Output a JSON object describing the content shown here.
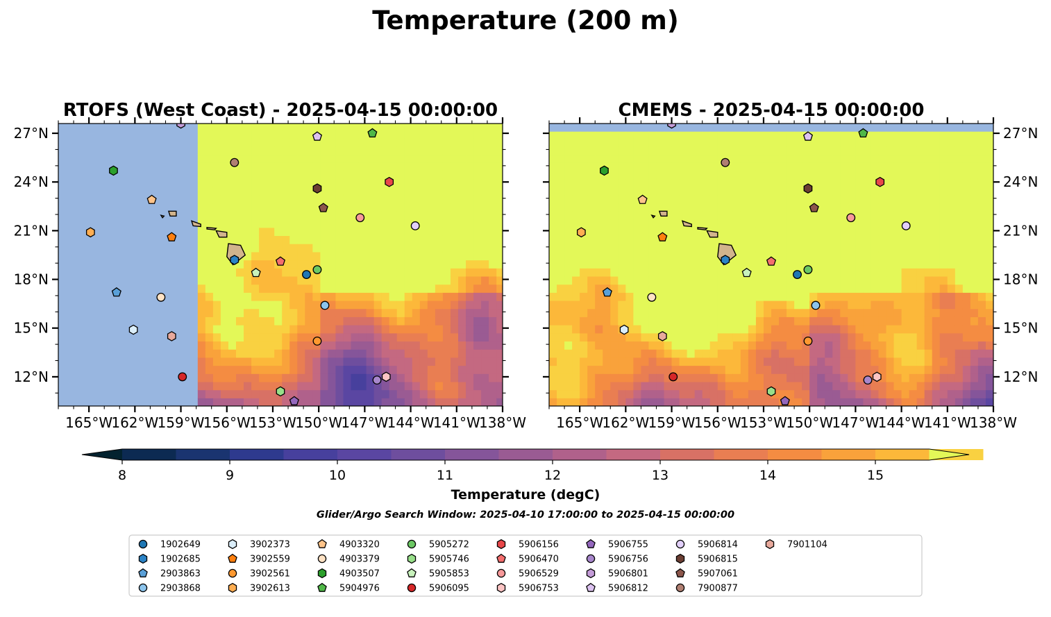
{
  "title": "Temperature (200 m)",
  "search_window": "Glider/Argo Search Window: 2025-04-10 17:00:00 to 2025-04-15 00:00:00",
  "colorbar": {
    "label": "Temperature (degC)",
    "min": 7.5,
    "max": 15.5,
    "ticks": [
      8,
      9,
      10,
      11,
      12,
      13,
      14,
      15
    ],
    "colors": [
      "#03222f",
      "#0c2a52",
      "#1a3470",
      "#2e3a8e",
      "#47409d",
      "#5a46a2",
      "#6e4e9e",
      "#85559a",
      "#9a5b93",
      "#b0618b",
      "#c46981",
      "#d87165",
      "#e97e52",
      "#f48c42",
      "#f9a23b",
      "#fcb83a",
      "#f9d141",
      "#e3f858"
    ],
    "ocean_color": "#98b6e0",
    "land_color": "#d2b48c"
  },
  "chart_data": [
    {
      "type": "heatmap",
      "title": "RTOFS (West Coast) - 2025-04-15 00:00:00",
      "xlim": [
        -167,
        -138
      ],
      "ylim": [
        10.2,
        27.6
      ],
      "xticks": [
        -165,
        -162,
        -159,
        -156,
        -153,
        -150,
        -147,
        -144,
        -141,
        -138
      ],
      "xtick_labels": [
        "165°W",
        "162°W",
        "159°W",
        "156°W",
        "153°W",
        "150°W",
        "147°W",
        "144°W",
        "141°W",
        "138°W"
      ],
      "yticks": [
        12,
        15,
        18,
        21,
        24,
        27
      ],
      "ytick_labels": [
        "12°N",
        "15°N",
        "18°N",
        "21°N",
        "24°N",
        "27°N"
      ],
      "ytick_side": "left",
      "data_extent": {
        "lon": [
          -157.9,
          -138
        ],
        "lat": [
          10.2,
          27.6
        ]
      }
    },
    {
      "type": "heatmap",
      "title": "CMEMS - 2025-04-15 00:00:00",
      "xlim": [
        -167,
        -138
      ],
      "ylim": [
        10.2,
        27.6
      ],
      "xticks": [
        -165,
        -162,
        -159,
        -156,
        -153,
        -150,
        -147,
        -144,
        -141,
        -138
      ],
      "xtick_labels": [
        "165°W",
        "162°W",
        "159°W",
        "156°W",
        "153°W",
        "150°W",
        "147°W",
        "144°W",
        "141°W",
        "138°W"
      ],
      "yticks": [
        12,
        15,
        18,
        21,
        24,
        27
      ],
      "ytick_labels": [
        "12°N",
        "15°N",
        "18°N",
        "21°N",
        "24°N",
        "27°N"
      ],
      "ytick_side": "right",
      "data_extent": {
        "lon": [
          -167,
          -138
        ],
        "lat": [
          10.2,
          27.1
        ]
      }
    }
  ],
  "floats": [
    {
      "id": "1902649",
      "marker": "circle",
      "color": "#1f77b4",
      "lon": -150.8,
      "lat": 18.3
    },
    {
      "id": "1902685",
      "marker": "hexagon",
      "color": "#2b83c6",
      "lon": -155.5,
      "lat": 19.2
    },
    {
      "id": "2903863",
      "marker": "pentagon",
      "color": "#5aa0d8",
      "lon": -163.2,
      "lat": 17.2
    },
    {
      "id": "2903868",
      "marker": "circle",
      "color": "#8cc4ec",
      "lon": -149.6,
      "lat": 16.4
    },
    {
      "id": "3902373",
      "marker": "hexagon",
      "color": "#dbeefa",
      "lon": -162.1,
      "lat": 14.9
    },
    {
      "id": "3902559",
      "marker": "pentagon",
      "color": "#ff7f0e",
      "lon": -159.6,
      "lat": 20.6
    },
    {
      "id": "3902561",
      "marker": "circle",
      "color": "#ff9930",
      "lon": -150.1,
      "lat": 14.2
    },
    {
      "id": "3902613",
      "marker": "hexagon",
      "color": "#ffae52",
      "lon": -164.9,
      "lat": 20.9
    },
    {
      "id": "4903320",
      "marker": "pentagon",
      "color": "#ffc48a",
      "lon": -160.9,
      "lat": 22.9
    },
    {
      "id": "4903379",
      "marker": "circle",
      "color": "#ffe2c4",
      "lon": -160.3,
      "lat": 16.9
    },
    {
      "id": "4903507",
      "marker": "hexagon",
      "color": "#2ca02c",
      "lon": -163.4,
      "lat": 24.7
    },
    {
      "id": "5904976",
      "marker": "pentagon",
      "color": "#50b848",
      "lon": -146.5,
      "lat": 27.0
    },
    {
      "id": "5905272",
      "marker": "circle",
      "color": "#6cc864",
      "lon": -150.1,
      "lat": 18.6
    },
    {
      "id": "5905746",
      "marker": "hexagon",
      "color": "#98df8a",
      "lon": -152.5,
      "lat": 11.1
    },
    {
      "id": "5905853",
      "marker": "pentagon",
      "color": "#c8f2bc",
      "lon": -154.1,
      "lat": 18.4
    },
    {
      "id": "5906095",
      "marker": "circle",
      "color": "#d62728",
      "lon": -158.9,
      "lat": 12.0
    },
    {
      "id": "5906156",
      "marker": "hexagon",
      "color": "#e8474a",
      "lon": -145.4,
      "lat": 24.0
    },
    {
      "id": "5906470",
      "marker": "pentagon",
      "color": "#f46e6e",
      "lon": -152.5,
      "lat": 19.1
    },
    {
      "id": "5906529",
      "marker": "circle",
      "color": "#f7999a",
      "lon": -147.3,
      "lat": 21.8
    },
    {
      "id": "5906753",
      "marker": "hexagon",
      "color": "#fcc4c4",
      "lon": -145.6,
      "lat": 12.0
    },
    {
      "id": "5906755",
      "marker": "pentagon",
      "color": "#9467bd",
      "lon": -151.6,
      "lat": 10.5
    },
    {
      "id": "5906756",
      "marker": "circle",
      "color": "#a887cc",
      "lon": -146.2,
      "lat": 11.8
    },
    {
      "id": "5906801",
      "marker": "hexagon",
      "color": "#c49cd8",
      "lon": -159.0,
      "lat": 27.6
    },
    {
      "id": "5906812",
      "marker": "pentagon",
      "color": "#dcc2f0",
      "lon": -150.1,
      "lat": 26.8
    },
    {
      "id": "5906814",
      "marker": "circle",
      "color": "#e2d0fa",
      "lon": -143.7,
      "lat": 21.3
    },
    {
      "id": "5906815",
      "marker": "hexagon",
      "color": "#6b3e33",
      "lon": -150.1,
      "lat": 23.6
    },
    {
      "id": "5907061",
      "marker": "pentagon",
      "color": "#8c564b",
      "lon": -149.7,
      "lat": 22.4
    },
    {
      "id": "7900877",
      "marker": "circle",
      "color": "#b07f72",
      "lon": -155.5,
      "lat": 25.2
    },
    {
      "id": "7901104",
      "marker": "hexagon",
      "color": "#e8a99c",
      "lon": -159.6,
      "lat": 14.5
    }
  ]
}
